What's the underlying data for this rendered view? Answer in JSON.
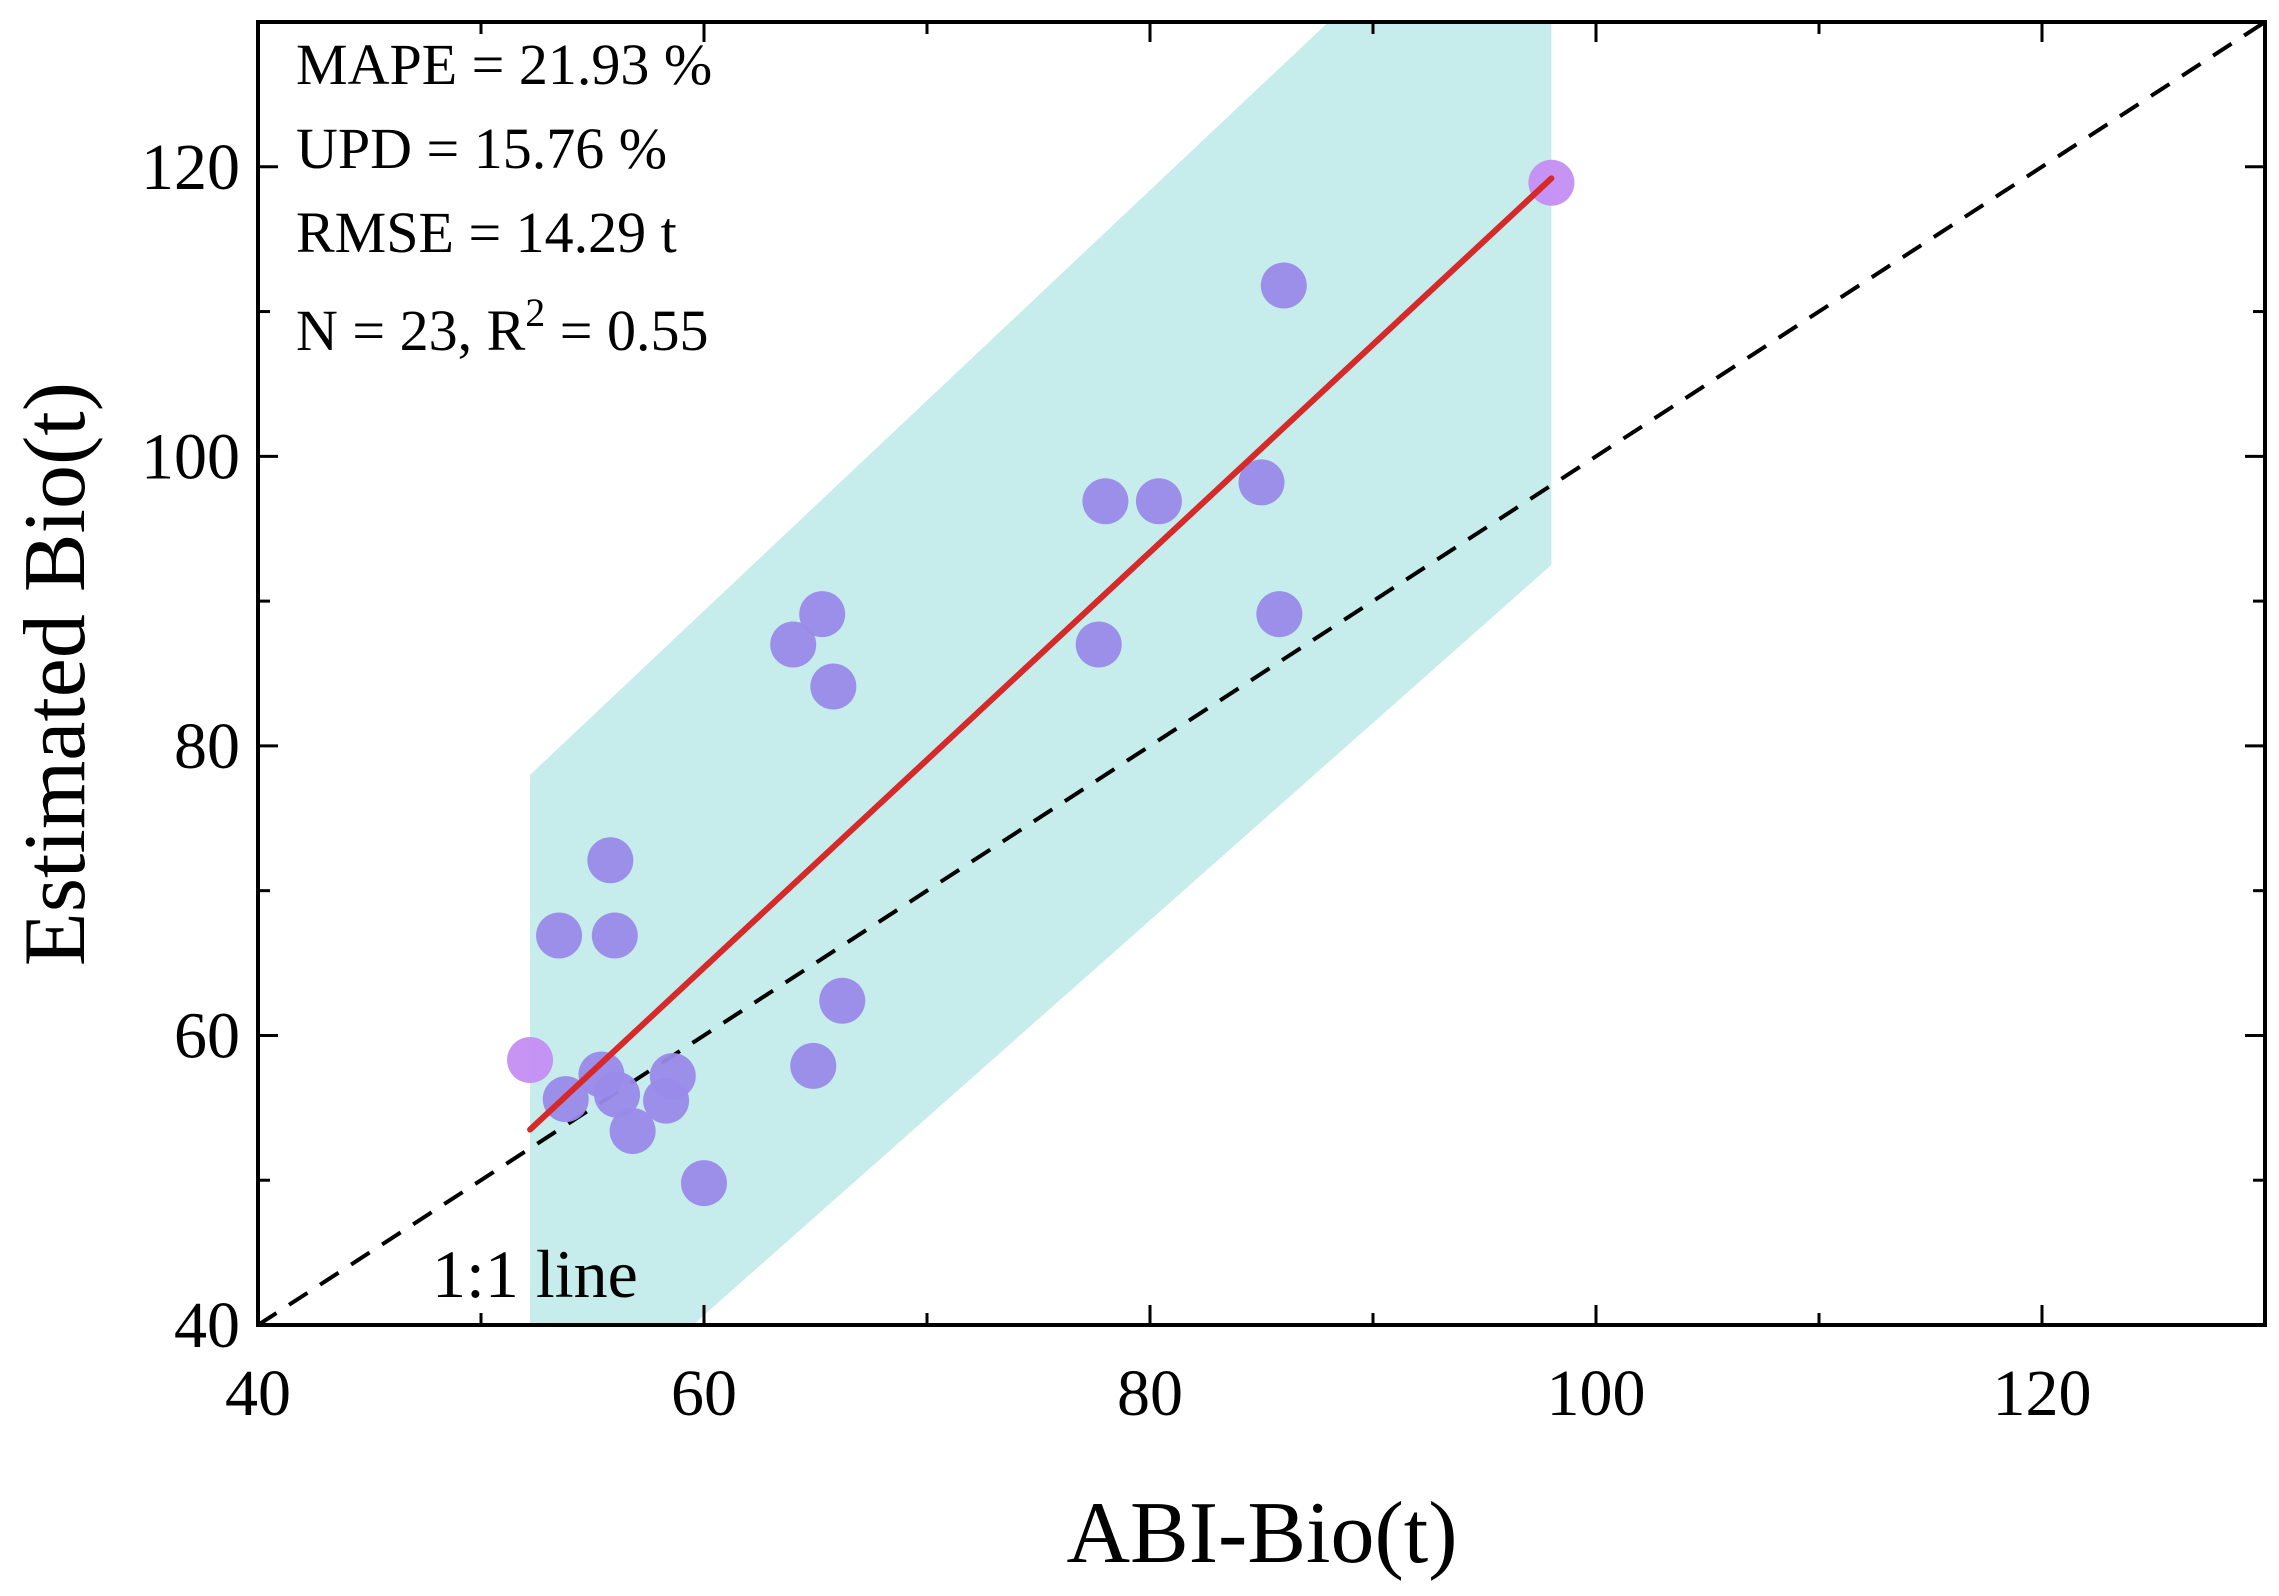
{
  "chart_data": {
    "type": "scatter",
    "title": "",
    "xlabel": "ABI-Bio(t)",
    "ylabel": "Estimated Bio(t)",
    "xlim": [
      40,
      130
    ],
    "ylim": [
      40,
      130
    ],
    "x_ticks": [
      40,
      60,
      80,
      100,
      120
    ],
    "y_ticks": [
      40,
      60,
      80,
      100,
      120
    ],
    "x_tick_labels": [
      "40",
      "60",
      "80",
      "100",
      "120"
    ],
    "y_tick_labels": [
      "40",
      "60",
      "80",
      "100",
      "120"
    ],
    "minor_tick_step": 10,
    "grid": false,
    "series": [
      {
        "name": "samples",
        "x": [
          52.2,
          53.5,
          53.8,
          55.4,
          55.8,
          56.0,
          56.1,
          56.8,
          58.3,
          58.6,
          60.0,
          64.0,
          64.9,
          65.3,
          65.8,
          66.2,
          77.7,
          78.0,
          80.4,
          85.0,
          85.8,
          86.0,
          98.0
        ],
        "y": [
          58.3,
          66.9,
          55.6,
          57.3,
          72.1,
          66.9,
          55.9,
          53.4,
          55.5,
          57.2,
          49.8,
          87.0,
          57.9,
          89.1,
          84.1,
          62.4,
          87.0,
          96.9,
          96.9,
          98.2,
          89.1,
          111.8,
          118.9
        ],
        "color": "#9a8ae9",
        "highlight_indices": [
          0,
          22
        ],
        "highlight_color": "#c48ef3"
      }
    ],
    "fit_line": {
      "name": "regression",
      "x": [
        52.2,
        98.0
      ],
      "y": [
        53.5,
        119.2
      ],
      "color": "#d62a2a"
    },
    "prediction_band": {
      "x_range": [
        52.2,
        98.0
      ],
      "upper": [
        [
          52.2,
          78.0
        ],
        [
          88.0,
          130.0
        ],
        [
          98.0,
          130.0
        ]
      ],
      "lower": [
        [
          52.2,
          40.0
        ],
        [
          59.5,
          40.0
        ],
        [
          98.0,
          92.5
        ]
      ],
      "color": "#c6ecec"
    },
    "reference_line": {
      "label": "1:1 line",
      "x": [
        40,
        130
      ],
      "y": [
        40,
        130
      ],
      "style": "dashed"
    },
    "annotations": {
      "mape": "MAPE = 21.93 %",
      "upd": "UPD = 15.76 %",
      "rmse": "RMSE = 14.29 t",
      "n_r2_prefix": "N = 23, R",
      "r2_superscript": "2",
      "r2_suffix": " = 0.55"
    }
  }
}
